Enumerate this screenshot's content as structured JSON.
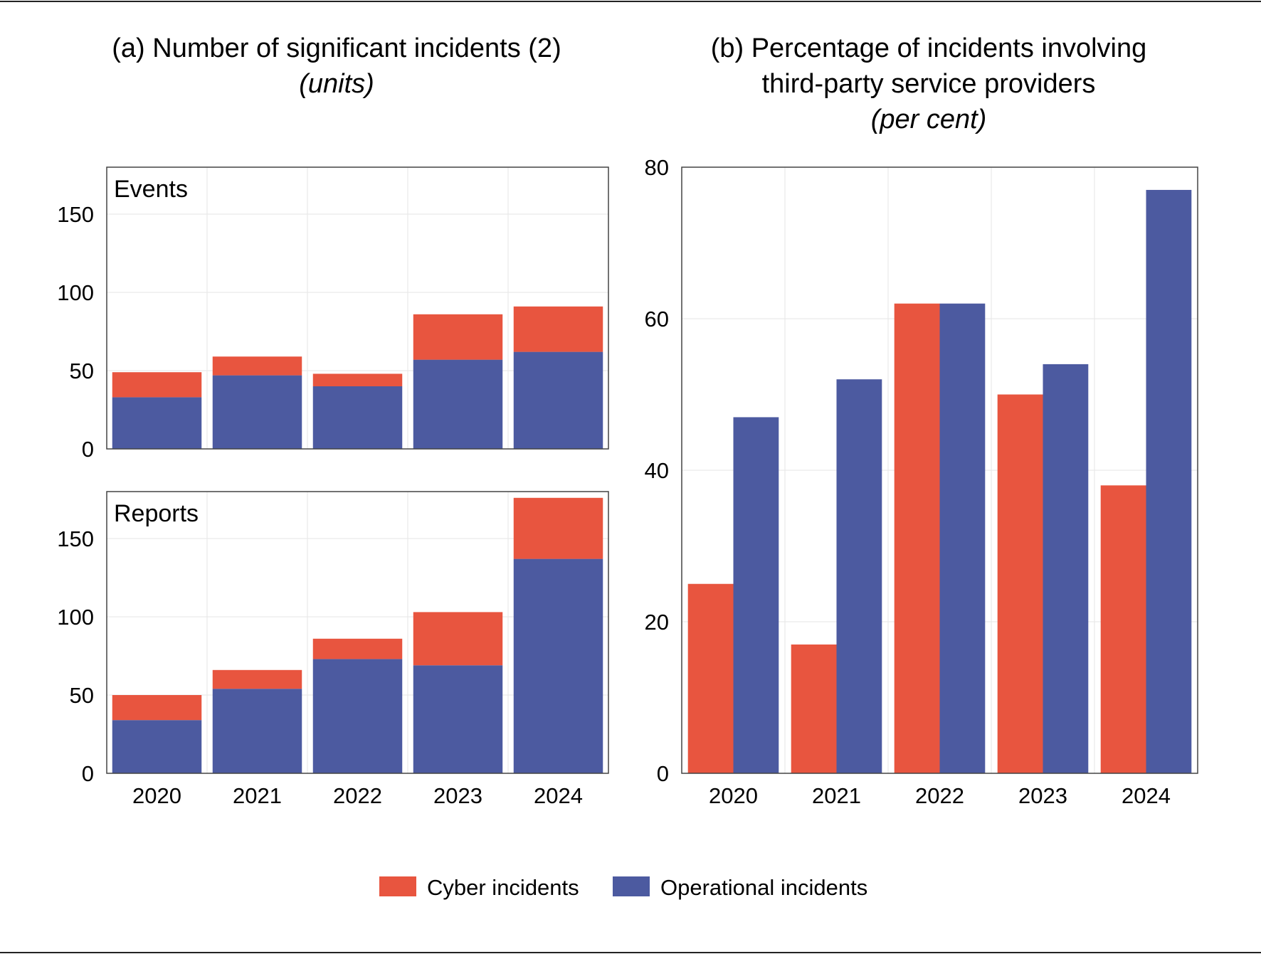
{
  "chart_data": [
    {
      "type": "bar",
      "stacked": true,
      "title": "(a) Number of significant incidents (2)",
      "unit_label": "(units)",
      "panels": [
        {
          "label": "Events",
          "categories": [
            "2020",
            "2021",
            "2022",
            "2023",
            "2024"
          ],
          "series": [
            {
              "name": "Operational incidents",
              "values": [
                33,
                47,
                40,
                57,
                62
              ]
            },
            {
              "name": "Cyber incidents",
              "values": [
                16,
                12,
                8,
                29,
                29
              ]
            }
          ],
          "ylim": [
            0,
            180
          ],
          "yticks": [
            0,
            50,
            100,
            150
          ]
        },
        {
          "label": "Reports",
          "categories": [
            "2020",
            "2021",
            "2022",
            "2023",
            "2024"
          ],
          "series": [
            {
              "name": "Operational incidents",
              "values": [
                34,
                54,
                73,
                69,
                137
              ]
            },
            {
              "name": "Cyber incidents",
              "values": [
                16,
                12,
                13,
                34,
                39
              ]
            }
          ],
          "ylim": [
            0,
            180
          ],
          "yticks": [
            0,
            50,
            100,
            150
          ]
        }
      ]
    },
    {
      "type": "bar",
      "stacked": false,
      "title_lines": [
        "(b) Percentage of incidents involving",
        "third-party service providers"
      ],
      "unit_label": "(per cent)",
      "categories": [
        "2020",
        "2021",
        "2022",
        "2023",
        "2024"
      ],
      "series": [
        {
          "name": "Cyber incidents",
          "values": [
            25,
            17,
            62,
            50,
            38
          ]
        },
        {
          "name": "Operational incidents",
          "values": [
            47,
            52,
            62,
            54,
            77
          ]
        }
      ],
      "ylim": [
        0,
        80
      ],
      "yticks": [
        0,
        20,
        40,
        60,
        80
      ]
    }
  ],
  "legend": [
    {
      "name": "Cyber incidents",
      "color": "#e8553f"
    },
    {
      "name": "Operational incidents",
      "color": "#4c5aa0"
    }
  ],
  "colors": {
    "cyber": "#e8553f",
    "operational": "#4c5aa0",
    "grid": "#e6e6e6"
  }
}
